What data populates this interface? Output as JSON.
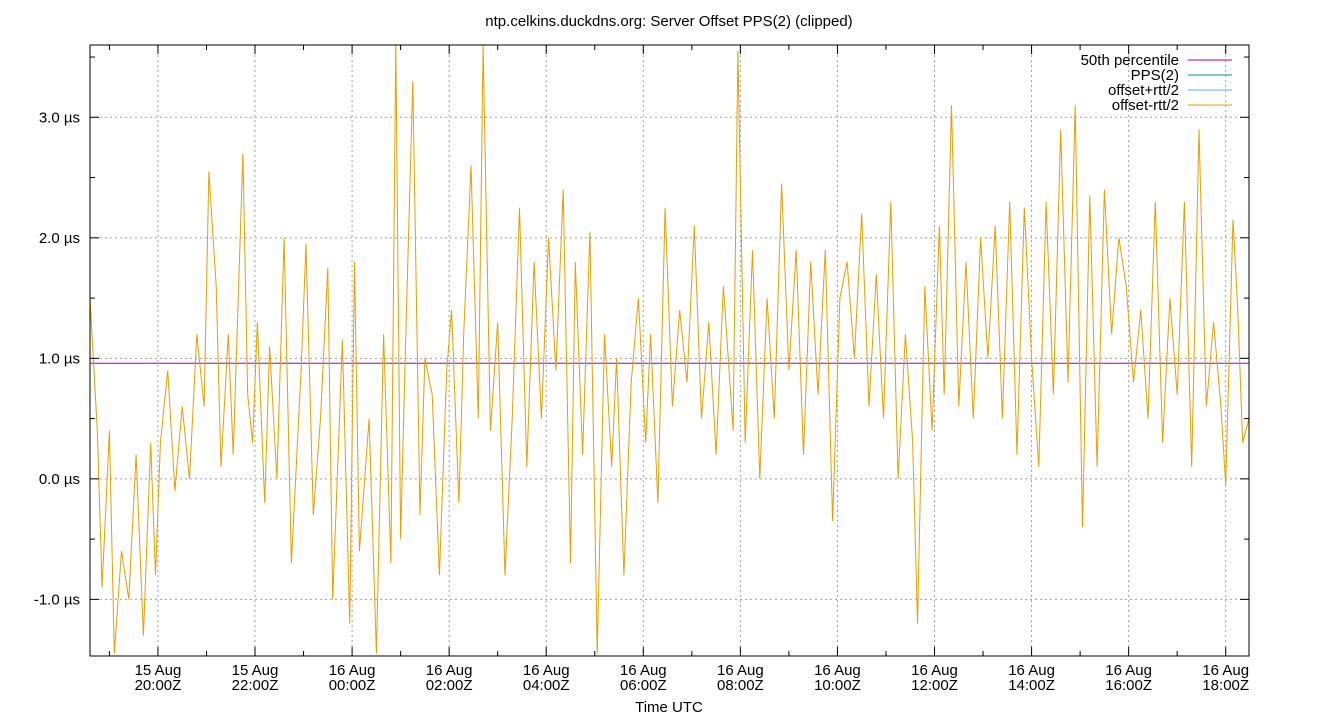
{
  "chart_data": {
    "type": "line",
    "title": "ntp.celkins.duckdns.org: Server Offset PPS(2) (clipped)",
    "xlabel": "Time UTC",
    "ylabel": "",
    "ylim": [
      -1.47,
      3.6
    ],
    "xlim": [
      "15 Aug 18:35Z",
      "16 Aug 18:25Z"
    ],
    "grid": true,
    "legend_position": "top-right",
    "y_ticks": [
      {
        "value": -1.0,
        "label": "-1.0 µs"
      },
      {
        "value": 0.0,
        "label": "0.0 µs"
      },
      {
        "value": 1.0,
        "label": "1.0 µs"
      },
      {
        "value": 2.0,
        "label": "2.0 µs"
      },
      {
        "value": 3.0,
        "label": "3.0 µs"
      }
    ],
    "x_ticks": [
      {
        "hour": 20,
        "date": "15 Aug",
        "time": "20:00Z"
      },
      {
        "hour": 22,
        "date": "15 Aug",
        "time": "22:00Z"
      },
      {
        "hour": 24,
        "date": "16 Aug",
        "time": "00:00Z"
      },
      {
        "hour": 26,
        "date": "16 Aug",
        "time": "02:00Z"
      },
      {
        "hour": 28,
        "date": "16 Aug",
        "time": "04:00Z"
      },
      {
        "hour": 30,
        "date": "16 Aug",
        "time": "06:00Z"
      },
      {
        "hour": 32,
        "date": "16 Aug",
        "time": "08:00Z"
      },
      {
        "hour": 34,
        "date": "16 Aug",
        "time": "10:00Z"
      },
      {
        "hour": 36,
        "date": "16 Aug",
        "time": "12:00Z"
      },
      {
        "hour": 38,
        "date": "16 Aug",
        "time": "14:00Z"
      },
      {
        "hour": 40,
        "date": "16 Aug",
        "time": "16:00Z"
      },
      {
        "hour": 42,
        "date": "16 Aug",
        "time": "18:00Z"
      }
    ],
    "x_range_hours": [
      18.6,
      42.48
    ],
    "series": [
      {
        "name": "50th percentile",
        "color": "#9400d3",
        "values": [
          [
            18.6,
            0.96
          ],
          [
            42.48,
            0.96
          ]
        ]
      },
      {
        "name": "PPS(2)",
        "color": "#009e73",
        "values": []
      },
      {
        "name": "offset+rtt/2",
        "color": "#56b4e9",
        "values": []
      },
      {
        "name": "offset-rtt/2",
        "color": "#e69f00",
        "values": [
          [
            18.6,
            1.5
          ],
          [
            18.75,
            0.4
          ],
          [
            18.85,
            -0.9
          ],
          [
            19.0,
            0.4
          ],
          [
            19.1,
            -1.45
          ],
          [
            19.25,
            -0.6
          ],
          [
            19.4,
            -1.0
          ],
          [
            19.55,
            0.2
          ],
          [
            19.7,
            -1.3
          ],
          [
            19.85,
            0.3
          ],
          [
            19.95,
            -0.8
          ],
          [
            20.05,
            0.3
          ],
          [
            20.2,
            0.9
          ],
          [
            20.35,
            -0.1
          ],
          [
            20.5,
            0.6
          ],
          [
            20.65,
            0.0
          ],
          [
            20.8,
            1.2
          ],
          [
            20.95,
            0.6
          ],
          [
            21.05,
            2.55
          ],
          [
            21.2,
            1.6
          ],
          [
            21.3,
            0.1
          ],
          [
            21.45,
            1.2
          ],
          [
            21.55,
            0.2
          ],
          [
            21.75,
            2.7
          ],
          [
            21.85,
            0.7
          ],
          [
            21.95,
            0.3
          ],
          [
            22.05,
            1.3
          ],
          [
            22.2,
            -0.2
          ],
          [
            22.3,
            1.1
          ],
          [
            22.45,
            0.0
          ],
          [
            22.6,
            2.0
          ],
          [
            22.75,
            -0.7
          ],
          [
            22.95,
            0.9
          ],
          [
            23.05,
            1.95
          ],
          [
            23.2,
            -0.3
          ],
          [
            23.35,
            0.5
          ],
          [
            23.5,
            1.75
          ],
          [
            23.6,
            -1.0
          ],
          [
            23.8,
            1.15
          ],
          [
            23.95,
            -1.2
          ],
          [
            24.05,
            1.8
          ],
          [
            24.15,
            -0.6
          ],
          [
            24.35,
            0.5
          ],
          [
            24.5,
            -1.45
          ],
          [
            24.65,
            1.2
          ],
          [
            24.8,
            -0.7
          ],
          [
            24.9,
            3.6
          ],
          [
            25.0,
            -0.5
          ],
          [
            25.1,
            1.1
          ],
          [
            25.25,
            3.3
          ],
          [
            25.4,
            -0.3
          ],
          [
            25.5,
            1.0
          ],
          [
            25.65,
            0.7
          ],
          [
            25.8,
            -0.8
          ],
          [
            25.95,
            0.9
          ],
          [
            26.05,
            1.4
          ],
          [
            26.2,
            -0.2
          ],
          [
            26.3,
            1.2
          ],
          [
            26.45,
            2.6
          ],
          [
            26.6,
            0.5
          ],
          [
            26.7,
            3.6
          ],
          [
            26.85,
            0.4
          ],
          [
            27.0,
            1.3
          ],
          [
            27.15,
            -0.8
          ],
          [
            27.3,
            0.5
          ],
          [
            27.45,
            2.25
          ],
          [
            27.6,
            0.1
          ],
          [
            27.75,
            1.8
          ],
          [
            27.9,
            0.5
          ],
          [
            28.05,
            2.0
          ],
          [
            28.2,
            0.9
          ],
          [
            28.35,
            2.4
          ],
          [
            28.5,
            -0.7
          ],
          [
            28.6,
            1.8
          ],
          [
            28.75,
            0.2
          ],
          [
            28.9,
            2.05
          ],
          [
            29.05,
            -1.45
          ],
          [
            29.2,
            1.2
          ],
          [
            29.35,
            0.1
          ],
          [
            29.45,
            1.0
          ],
          [
            29.6,
            -0.8
          ],
          [
            29.75,
            0.8
          ],
          [
            29.9,
            1.5
          ],
          [
            30.05,
            0.3
          ],
          [
            30.15,
            1.2
          ],
          [
            30.3,
            -0.2
          ],
          [
            30.45,
            2.25
          ],
          [
            30.6,
            0.6
          ],
          [
            30.75,
            1.4
          ],
          [
            30.9,
            0.8
          ],
          [
            31.05,
            2.1
          ],
          [
            31.2,
            0.5
          ],
          [
            31.35,
            1.3
          ],
          [
            31.5,
            0.2
          ],
          [
            31.65,
            1.6
          ],
          [
            31.85,
            0.4
          ],
          [
            31.95,
            3.55
          ],
          [
            32.1,
            0.3
          ],
          [
            32.25,
            1.9
          ],
          [
            32.4,
            0.0
          ],
          [
            32.55,
            1.5
          ],
          [
            32.7,
            0.5
          ],
          [
            32.85,
            2.45
          ],
          [
            33.0,
            0.9
          ],
          [
            33.15,
            1.9
          ],
          [
            33.3,
            0.2
          ],
          [
            33.45,
            1.8
          ],
          [
            33.6,
            0.7
          ],
          [
            33.75,
            1.9
          ],
          [
            33.9,
            -0.35
          ],
          [
            34.05,
            1.5
          ],
          [
            34.2,
            1.8
          ],
          [
            34.35,
            1.0
          ],
          [
            34.5,
            2.2
          ],
          [
            34.65,
            0.6
          ],
          [
            34.8,
            1.7
          ],
          [
            34.95,
            0.5
          ],
          [
            35.1,
            2.3
          ],
          [
            35.25,
            0.0
          ],
          [
            35.4,
            1.2
          ],
          [
            35.55,
            0.3
          ],
          [
            35.65,
            -1.2
          ],
          [
            35.8,
            1.6
          ],
          [
            35.95,
            0.4
          ],
          [
            36.1,
            2.1
          ],
          [
            36.2,
            0.7
          ],
          [
            36.35,
            3.1
          ],
          [
            36.5,
            0.6
          ],
          [
            36.65,
            1.8
          ],
          [
            36.8,
            0.5
          ],
          [
            36.95,
            2.0
          ],
          [
            37.1,
            1.0
          ],
          [
            37.25,
            2.1
          ],
          [
            37.4,
            0.5
          ],
          [
            37.55,
            2.3
          ],
          [
            37.7,
            0.2
          ],
          [
            37.85,
            2.25
          ],
          [
            38.0,
            1.0
          ],
          [
            38.15,
            0.1
          ],
          [
            38.3,
            2.3
          ],
          [
            38.45,
            0.7
          ],
          [
            38.6,
            2.9
          ],
          [
            38.75,
            0.8
          ],
          [
            38.9,
            3.1
          ],
          [
            39.05,
            -0.4
          ],
          [
            39.2,
            2.35
          ],
          [
            39.35,
            0.1
          ],
          [
            39.5,
            2.4
          ],
          [
            39.65,
            1.2
          ],
          [
            39.8,
            2.0
          ],
          [
            39.95,
            1.6
          ],
          [
            40.1,
            0.8
          ],
          [
            40.25,
            1.4
          ],
          [
            40.4,
            0.5
          ],
          [
            40.55,
            2.3
          ],
          [
            40.7,
            0.3
          ],
          [
            40.85,
            1.5
          ],
          [
            41.0,
            0.7
          ],
          [
            41.15,
            2.3
          ],
          [
            41.3,
            0.1
          ],
          [
            41.45,
            2.9
          ],
          [
            41.6,
            0.6
          ],
          [
            41.75,
            1.3
          ],
          [
            41.9,
            0.6
          ],
          [
            42.0,
            -0.05
          ],
          [
            42.15,
            2.15
          ],
          [
            42.25,
            1.4
          ],
          [
            42.35,
            0.3
          ],
          [
            42.48,
            0.5
          ]
        ]
      }
    ]
  }
}
